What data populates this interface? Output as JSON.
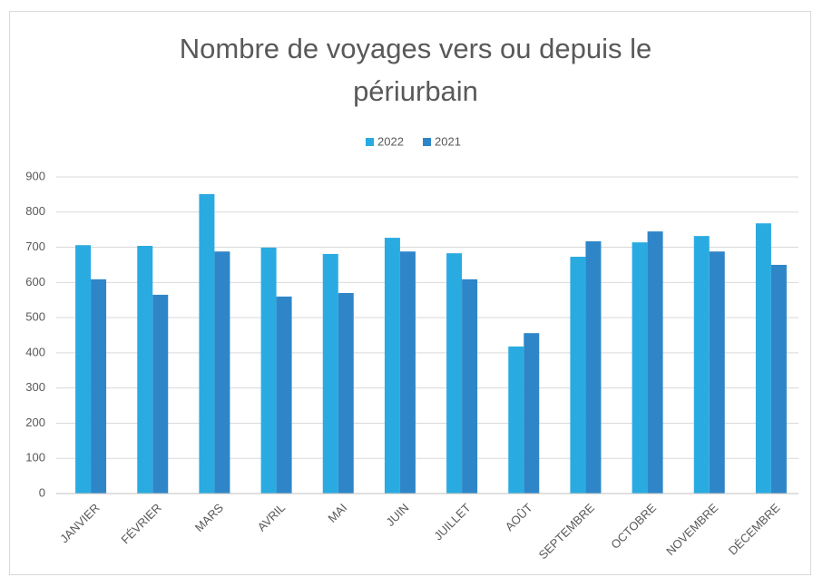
{
  "chart_data": {
    "type": "bar",
    "title": "Nombre de voyages vers ou depuis le périurbain",
    "categories": [
      "JANVIER",
      "FÉVRIER",
      "MARS",
      "AVRIL",
      "MAI",
      "JUIN",
      "JUILLET",
      "AOÛT",
      "SEPTEMBRE",
      "OCTOBRE",
      "NOVEMBRE",
      "DÉCEMBRE"
    ],
    "series": [
      {
        "name": "2022",
        "color": "#29abe2",
        "values": [
          706,
          704,
          851,
          699,
          681,
          727,
          683,
          418,
          673,
          714,
          732,
          768
        ]
      },
      {
        "name": "2021",
        "color": "#2e86c8",
        "values": [
          609,
          565,
          688,
          560,
          570,
          688,
          609,
          456,
          717,
          745,
          688,
          650
        ]
      }
    ],
    "ylim": [
      0,
      900
    ],
    "yticks": [
      0,
      100,
      200,
      300,
      400,
      500,
      600,
      700,
      800,
      900
    ],
    "grid": true,
    "legend": "top"
  }
}
